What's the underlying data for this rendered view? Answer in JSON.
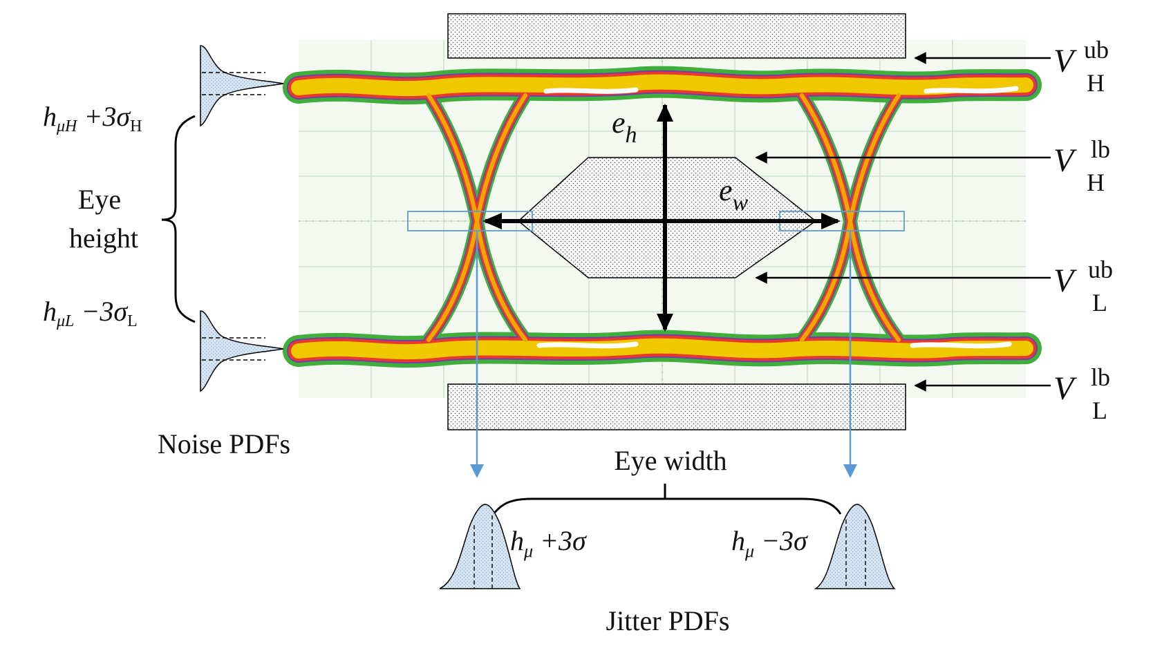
{
  "diagram": {
    "noise": {
      "upper_label": {
        "h": "h",
        "sub": "μH",
        "rest": " +3σ",
        "sub2": "H"
      },
      "lower_label": {
        "h": "h",
        "sub": "μL",
        "rest": " −3σ",
        "sub2": "L"
      },
      "eye_height_line1": "Eye",
      "eye_height_line2": "height",
      "caption": "Noise PDFs"
    },
    "jitter": {
      "left_label": {
        "h": "h",
        "sub": "μ",
        "rest": " +3σ"
      },
      "right_label": {
        "h": "h",
        "sub": "μ",
        "rest": " −3σ"
      },
      "eye_width": "Eye width",
      "caption": "Jitter PDFs"
    },
    "eye": {
      "eh": {
        "main": "e",
        "sub": "h"
      },
      "ew": {
        "main": "e",
        "sub": "w"
      }
    },
    "voltage_labels": [
      {
        "main": "V",
        "sup": "ub",
        "sub": "H"
      },
      {
        "main": "V",
        "sup": "lb",
        "sub": "H"
      },
      {
        "main": "V",
        "sup": "ub",
        "sub": "L"
      },
      {
        "main": "V",
        "sup": "lb",
        "sub": "L"
      }
    ],
    "colors": {
      "trace_core": "#f0c800",
      "trace_mid": "#e83a2a",
      "trace_edge": "#3fae3a",
      "pdf_fill": "#cfe2f3",
      "jitter_guide": "#5b9bd5"
    }
  }
}
